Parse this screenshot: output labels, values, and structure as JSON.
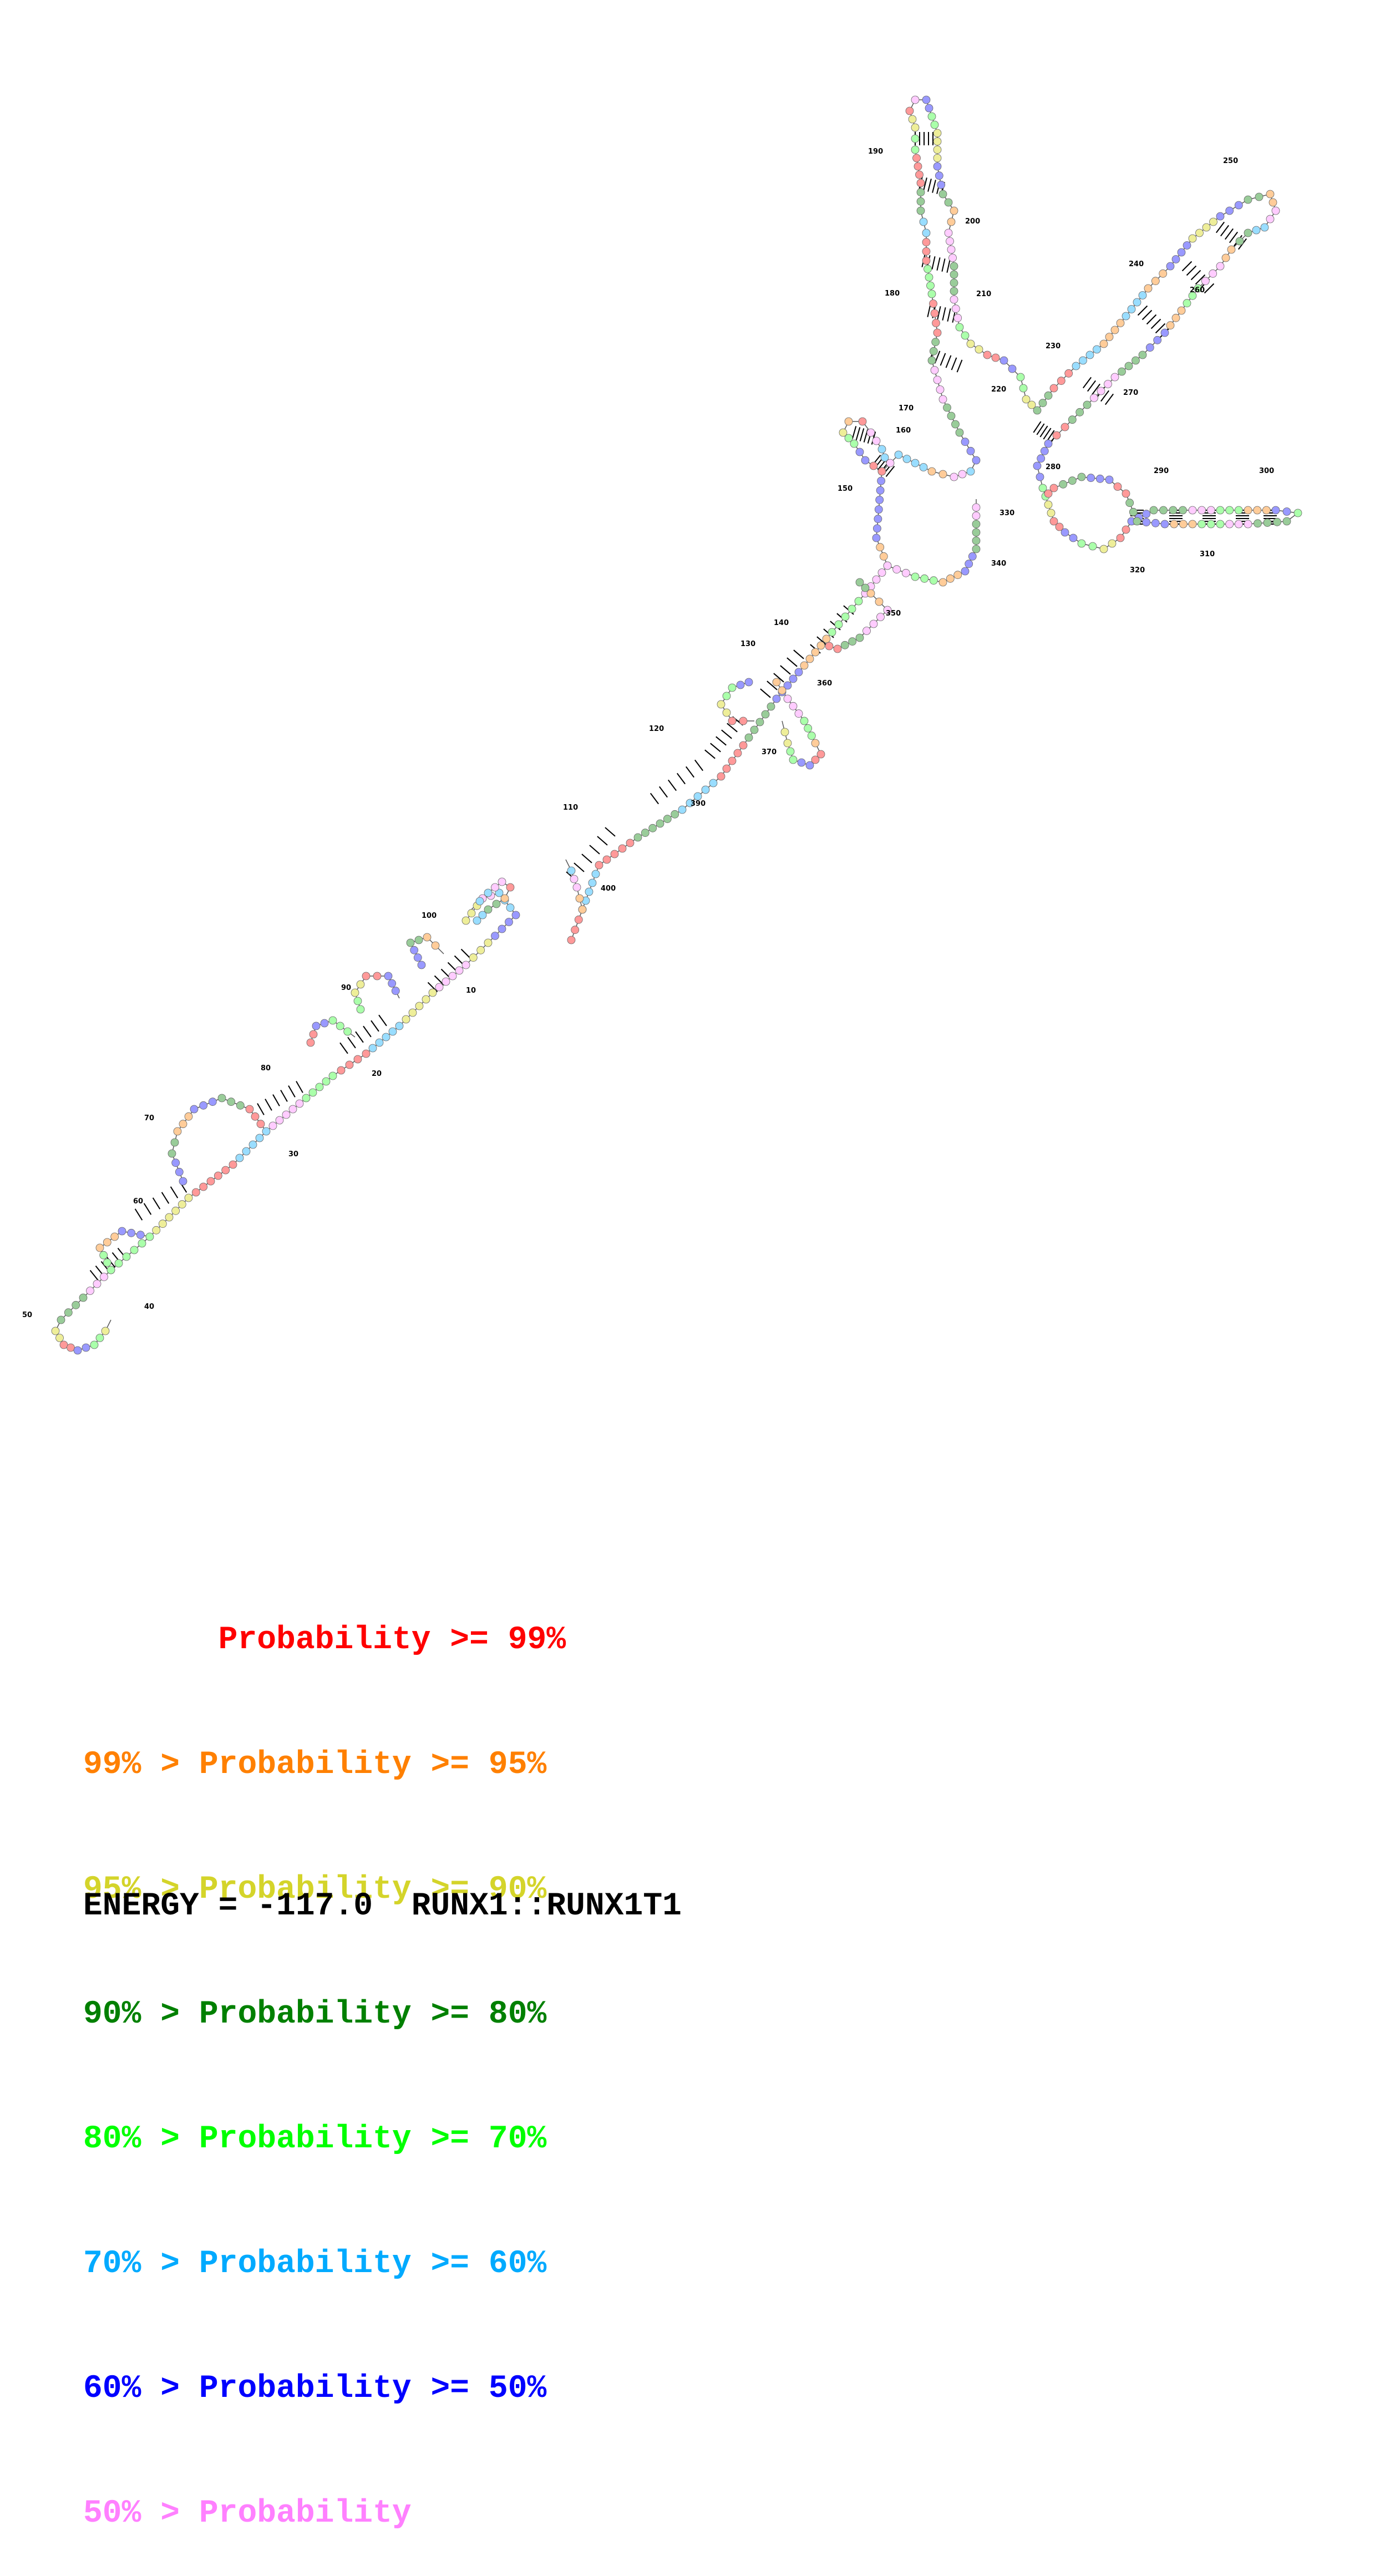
{
  "diagram": {
    "backbone_color": "#555555",
    "pair_color": "#000000",
    "position_labels": [
      "10",
      "20",
      "30",
      "40",
      "50",
      "60",
      "70",
      "80",
      "90",
      "100",
      "110",
      "120",
      "130",
      "140",
      "150",
      "160",
      "170",
      "180",
      "190",
      "200",
      "210",
      "220",
      "230",
      "240",
      "250",
      "260",
      "270",
      "280",
      "290",
      "300",
      "310",
      "320",
      "330",
      "340",
      "350",
      "360",
      "370",
      "390",
      "400"
    ]
  },
  "legend": {
    "rows": [
      {
        "text": "       Probability >= 99%",
        "color": "#ff0000"
      },
      {
        "text": "99% > Probability >= 95%",
        "color": "#ff8000"
      },
      {
        "text": "95% > Probability >= 90%",
        "color": "#d4d42a"
      },
      {
        "text": "90% > Probability >= 80%",
        "color": "#008000"
      },
      {
        "text": "80% > Probability >= 70%",
        "color": "#00ff00"
      },
      {
        "text": "70% > Probability >= 60%",
        "color": "#00aaff"
      },
      {
        "text": "60% > Probability >= 50%",
        "color": "#0000ff"
      },
      {
        "text": "50% > Probability",
        "color": "#ff80ff"
      }
    ],
    "fill_colors": [
      "#ff9999",
      "#ffcc99",
      "#eeee99",
      "#99cc99",
      "#aaffaa",
      "#99ddff",
      "#9999ff",
      "#ffccff"
    ]
  },
  "footer": {
    "energy_text": "ENERGY = -117.0  RUNX1::RUNX1T1"
  }
}
